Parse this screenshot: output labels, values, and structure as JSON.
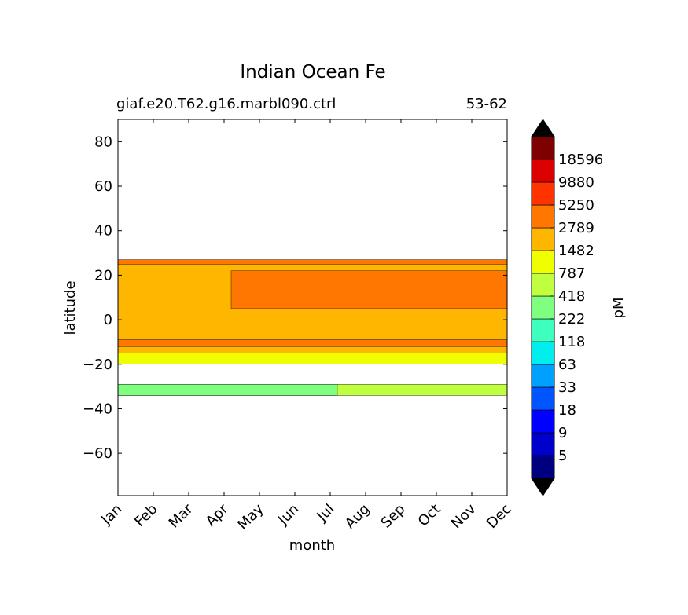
{
  "chart_data": {
    "type": "heatmap",
    "title": "Indian Ocean Fe",
    "subtitle_left": "giaf.e20.T62.g16.marbl090.ctrl",
    "subtitle_right": "53-62",
    "xlabel": "month",
    "ylabel": "latitude",
    "x_ticks": [
      "Jan",
      "Feb",
      "Mar",
      "Apr",
      "May",
      "Jun",
      "Jul",
      "Aug",
      "Sep",
      "Oct",
      "Nov",
      "Dec"
    ],
    "ylim": [
      -79,
      90
    ],
    "y_ticks": [
      80,
      60,
      40,
      20,
      0,
      -20,
      -40,
      -60
    ],
    "y_tick_labels": [
      "80",
      "60",
      "40",
      "20",
      "0",
      "−20",
      "−40",
      "−60"
    ],
    "colorbar": {
      "label": "pM",
      "levels": [
        3,
        5,
        9,
        18,
        33,
        63,
        118,
        222,
        418,
        787,
        1482,
        2789,
        5250,
        9880,
        18596,
        35000
      ],
      "labels": [
        "5",
        "9",
        "18",
        "33",
        "63",
        "118",
        "222",
        "418",
        "787",
        "1482",
        "2789",
        "5250",
        "9880",
        "18596"
      ],
      "colors": [
        "#00007f",
        "#0000cc",
        "#0000ff",
        "#0055ff",
        "#00a0ff",
        "#00eeee",
        "#3fffbf",
        "#7fff7f",
        "#bfff3f",
        "#efff00",
        "#ffb600",
        "#ff7700",
        "#ff3300",
        "#dd0000",
        "#7f0000"
      ],
      "extend_under_color": "#000000",
      "extend_over_color": "#000000"
    },
    "regions": [
      {
        "level": "418",
        "lat": [
          -34,
          -29
        ],
        "months": [
          0,
          11
        ]
      },
      {
        "level": "222",
        "lat": [
          -34,
          -29
        ],
        "months": [
          0,
          6.2
        ],
        "note": ""
      },
      {
        "level": "787",
        "lat": [
          -20,
          -15
        ],
        "months": [
          0,
          11
        ]
      },
      {
        "level": "1482",
        "lat": [
          -15,
          -12
        ],
        "months": [
          0,
          11
        ]
      },
      {
        "level": "2789",
        "lat": [
          -12,
          -9
        ],
        "months": [
          0,
          11
        ]
      },
      {
        "level": "1482",
        "lat": [
          -9,
          25
        ],
        "months": [
          0,
          11
        ]
      },
      {
        "level": "2789",
        "lat": [
          5,
          22
        ],
        "months": [
          3.2,
          11
        ]
      },
      {
        "level": "2789",
        "lat": [
          25,
          27
        ],
        "months": [
          0,
          11
        ]
      }
    ]
  }
}
